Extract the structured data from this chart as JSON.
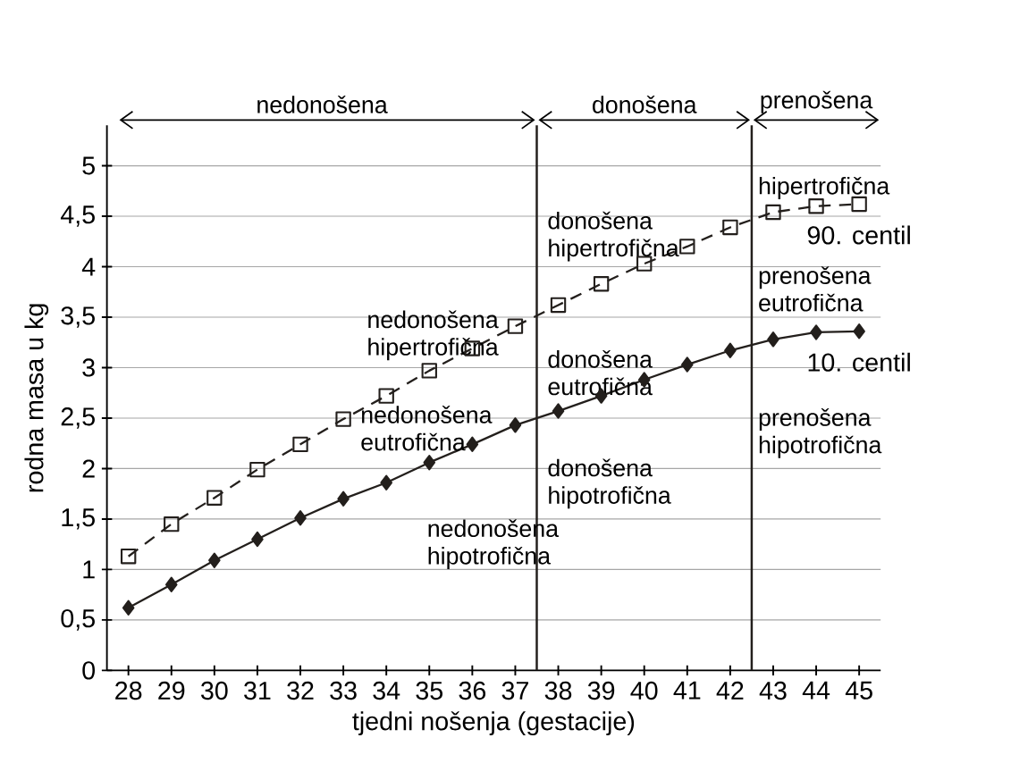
{
  "chart_data": {
    "type": "line",
    "xlabel": "tjedni nošenja (gestacije)",
    "ylabel": "rodna masa u kg",
    "xlim": [
      27.5,
      45.5
    ],
    "ylim": [
      0,
      5.4
    ],
    "xticks": [
      28,
      29,
      30,
      31,
      32,
      33,
      34,
      35,
      36,
      37,
      38,
      39,
      40,
      41,
      42,
      43,
      44,
      45
    ],
    "yticks": [
      0,
      {
        "value": 0.5,
        "label": "0,5"
      },
      1,
      {
        "value": 1.5,
        "label": "1,5"
      },
      2,
      {
        "value": 2.5,
        "label": "2,5"
      },
      3,
      {
        "value": 3.5,
        "label": "3,5"
      },
      4,
      {
        "value": 4.5,
        "label": "4,5"
      },
      5
    ],
    "grid": "y",
    "series": [
      {
        "name": "90. centil",
        "color": "#231f1c",
        "marker": "square",
        "line_style": "dashed",
        "x": [
          28,
          29,
          30,
          31,
          32,
          33,
          34,
          35,
          36,
          37,
          38,
          39,
          40,
          41,
          42,
          43,
          44,
          45
        ],
        "values": [
          1.13,
          1.45,
          1.71,
          1.99,
          2.24,
          2.49,
          2.72,
          2.97,
          3.19,
          3.41,
          3.62,
          3.83,
          4.03,
          4.2,
          4.39,
          4.54,
          4.6,
          4.62
        ]
      },
      {
        "name": "10. centil",
        "color": "#231f1c",
        "marker": "diamond",
        "line_style": "solid",
        "x": [
          28,
          29,
          30,
          31,
          32,
          33,
          34,
          35,
          36,
          37,
          38,
          39,
          40,
          41,
          42,
          43,
          44,
          45
        ],
        "values": [
          0.62,
          0.85,
          1.09,
          1.3,
          1.51,
          1.7,
          1.86,
          2.06,
          2.24,
          2.43,
          2.57,
          2.72,
          2.88,
          3.03,
          3.17,
          3.28,
          3.35,
          3.36
        ]
      }
    ],
    "ref_lines": [
      {
        "axis": "x",
        "value": 37.5,
        "color": "#231f1c"
      },
      {
        "axis": "x",
        "value": 42.5,
        "color": "#231f1c"
      }
    ],
    "annotations": [
      "nedonošena",
      "donošena",
      "prenošena",
      "nedonošena hipertrofična",
      "nedonošena eutrofična",
      "nedonošena hipotrofična",
      "donošena hipertrofična",
      "donošena eutrofična",
      "donošena hipotrofična",
      "hipertrofična",
      "prenošena eutrofična",
      "prenošena hipotrofična"
    ]
  }
}
